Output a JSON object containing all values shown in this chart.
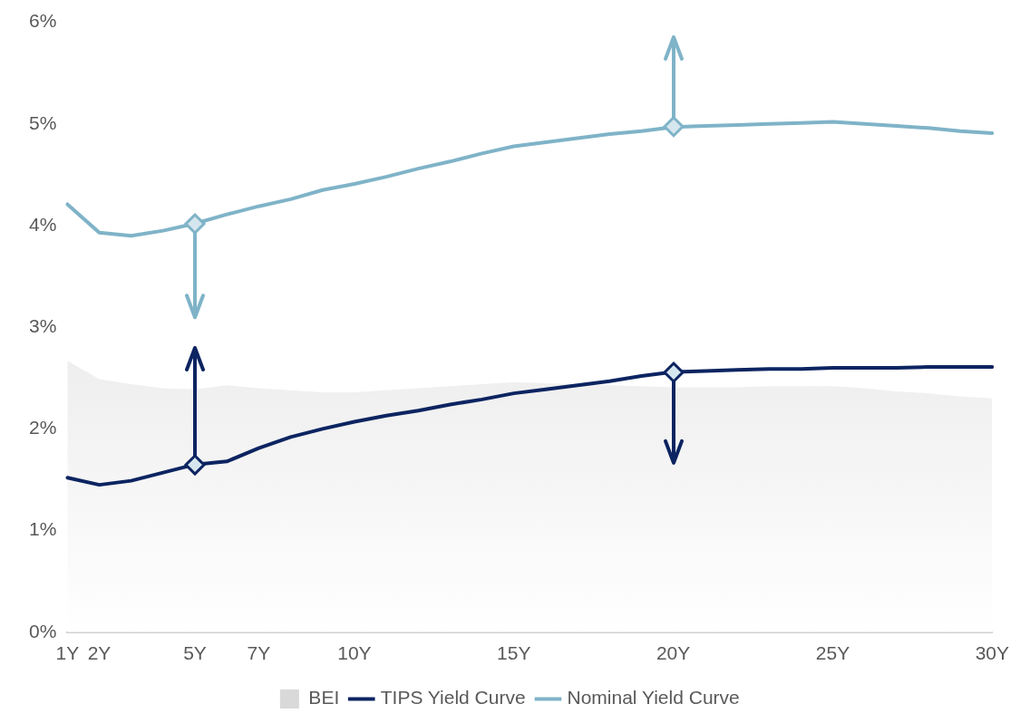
{
  "chart_data": {
    "type": "line",
    "categories": [
      "1Y",
      "2Y",
      null,
      null,
      "5Y",
      null,
      "7Y",
      null,
      null,
      "10Y",
      null,
      null,
      null,
      null,
      "15Y",
      null,
      null,
      null,
      null,
      "20Y",
      null,
      null,
      null,
      null,
      "25Y",
      null,
      null,
      null,
      null,
      "30Y"
    ],
    "series": [
      {
        "name": "BEI",
        "type": "area",
        "color": "#d9d9d9",
        "values": [
          2.67,
          2.49,
          2.44,
          2.4,
          2.39,
          2.43,
          2.4,
          2.38,
          2.36,
          2.36,
          2.38,
          2.4,
          2.42,
          2.44,
          2.46,
          2.45,
          2.44,
          2.43,
          2.42,
          2.41,
          2.41,
          2.41,
          2.42,
          2.42,
          2.42,
          2.4,
          2.37,
          2.35,
          2.32,
          2.3
        ]
      },
      {
        "name": "TIPS Yield Curve",
        "color": "#0c2461",
        "values": [
          1.52,
          1.45,
          1.49,
          1.57,
          1.65,
          1.68,
          1.81,
          1.92,
          2.0,
          2.07,
          2.13,
          2.18,
          2.24,
          2.29,
          2.35,
          2.39,
          2.43,
          2.47,
          2.52,
          2.56,
          2.57,
          2.58,
          2.59,
          2.59,
          2.6,
          2.6,
          2.6,
          2.61,
          2.61,
          2.61
        ]
      },
      {
        "name": "Nominal Yield Curve",
        "color": "#7fb3c8",
        "values": [
          4.21,
          3.93,
          3.9,
          3.95,
          4.02,
          4.11,
          4.19,
          4.26,
          4.35,
          4.41,
          4.48,
          4.56,
          4.63,
          4.71,
          4.78,
          4.82,
          4.86,
          4.9,
          4.93,
          4.97,
          4.98,
          4.99,
          5.0,
          5.01,
          5.02,
          5.0,
          4.98,
          4.96,
          4.93,
          4.91
        ]
      }
    ],
    "ylim": [
      0,
      6
    ],
    "yticks": [
      {
        "value": 0,
        "label": "0%"
      },
      {
        "value": 1,
        "label": "1%"
      },
      {
        "value": 2,
        "label": "2%"
      },
      {
        "value": 3,
        "label": "3%"
      },
      {
        "value": 4,
        "label": "4%"
      },
      {
        "value": 5,
        "label": "5%"
      },
      {
        "value": 6,
        "label": "6%"
      }
    ],
    "grid": false,
    "legend": "bottom",
    "line_style": "solid"
  }
}
